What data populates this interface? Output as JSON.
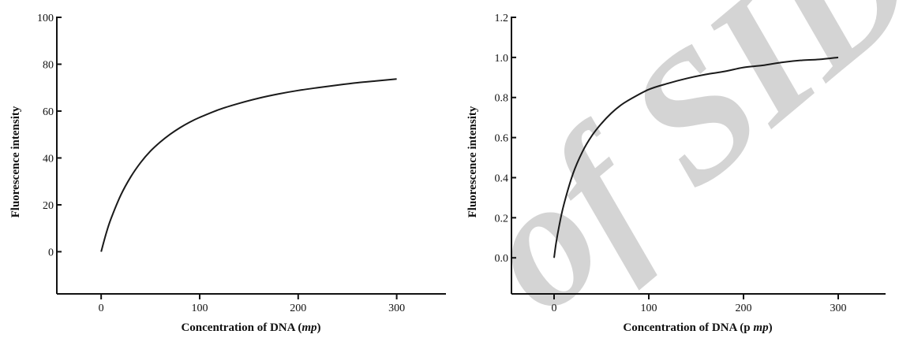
{
  "chart_data": [
    {
      "type": "line",
      "xlabel_parts": [
        {
          "text": "Concentration of DNA (",
          "italic": false
        },
        {
          "text": "mp",
          "italic": true
        },
        {
          "text": ")",
          "italic": false
        }
      ],
      "ylabel": "Fluorescence intensity",
      "xlim": [
        -45,
        350
      ],
      "ylim": [
        -18,
        100
      ],
      "xticks": [
        0,
        100,
        200,
        300
      ],
      "yticks": [
        0,
        20,
        40,
        60,
        80,
        100
      ],
      "grid": false,
      "legend": "none",
      "color": "#1a1a1a",
      "series": [
        {
          "x": [
            0,
            5,
            10,
            20,
            30,
            40,
            50,
            60,
            70,
            80,
            90,
            100,
            120,
            140,
            160,
            180,
            200,
            220,
            240,
            260,
            280,
            300
          ],
          "values": [
            0,
            7.7,
            14.1,
            24.2,
            31.9,
            38.0,
            42.9,
            46.8,
            50.1,
            52.9,
            55.3,
            57.3,
            60.7,
            63.3,
            65.5,
            67.3,
            68.8,
            70.0,
            71.1,
            72.1,
            72.9,
            73.7
          ]
        }
      ]
    },
    {
      "type": "line",
      "xlabel_parts": [
        {
          "text": "Concentration of DNA (p ",
          "italic": false
        },
        {
          "text": "mp",
          "italic": true
        },
        {
          "text": ")",
          "italic": false
        }
      ],
      "ylabel": "Fluorescence intensity",
      "xlim": [
        -45,
        350
      ],
      "ylim": [
        -0.18,
        1.2
      ],
      "xticks": [
        0,
        100,
        200,
        300
      ],
      "yticks": [
        0.0,
        0.2,
        0.4,
        0.6,
        0.8,
        1.0,
        1.2
      ],
      "grid": false,
      "legend": "none",
      "color": "#1a1a1a",
      "series": [
        {
          "x": [
            0,
            2,
            5,
            10,
            20,
            30,
            40,
            50,
            60,
            70,
            80,
            100,
            120,
            140,
            160,
            180,
            200,
            220,
            240,
            260,
            280,
            300
          ],
          "values": [
            0,
            0.07,
            0.15,
            0.26,
            0.42,
            0.53,
            0.61,
            0.67,
            0.72,
            0.76,
            0.79,
            0.84,
            0.87,
            0.895,
            0.915,
            0.93,
            0.95,
            0.96,
            0.975,
            0.985,
            0.99,
            1.0
          ]
        }
      ]
    }
  ],
  "watermark": {
    "text": "of SID",
    "color": "#d4d4d4"
  }
}
